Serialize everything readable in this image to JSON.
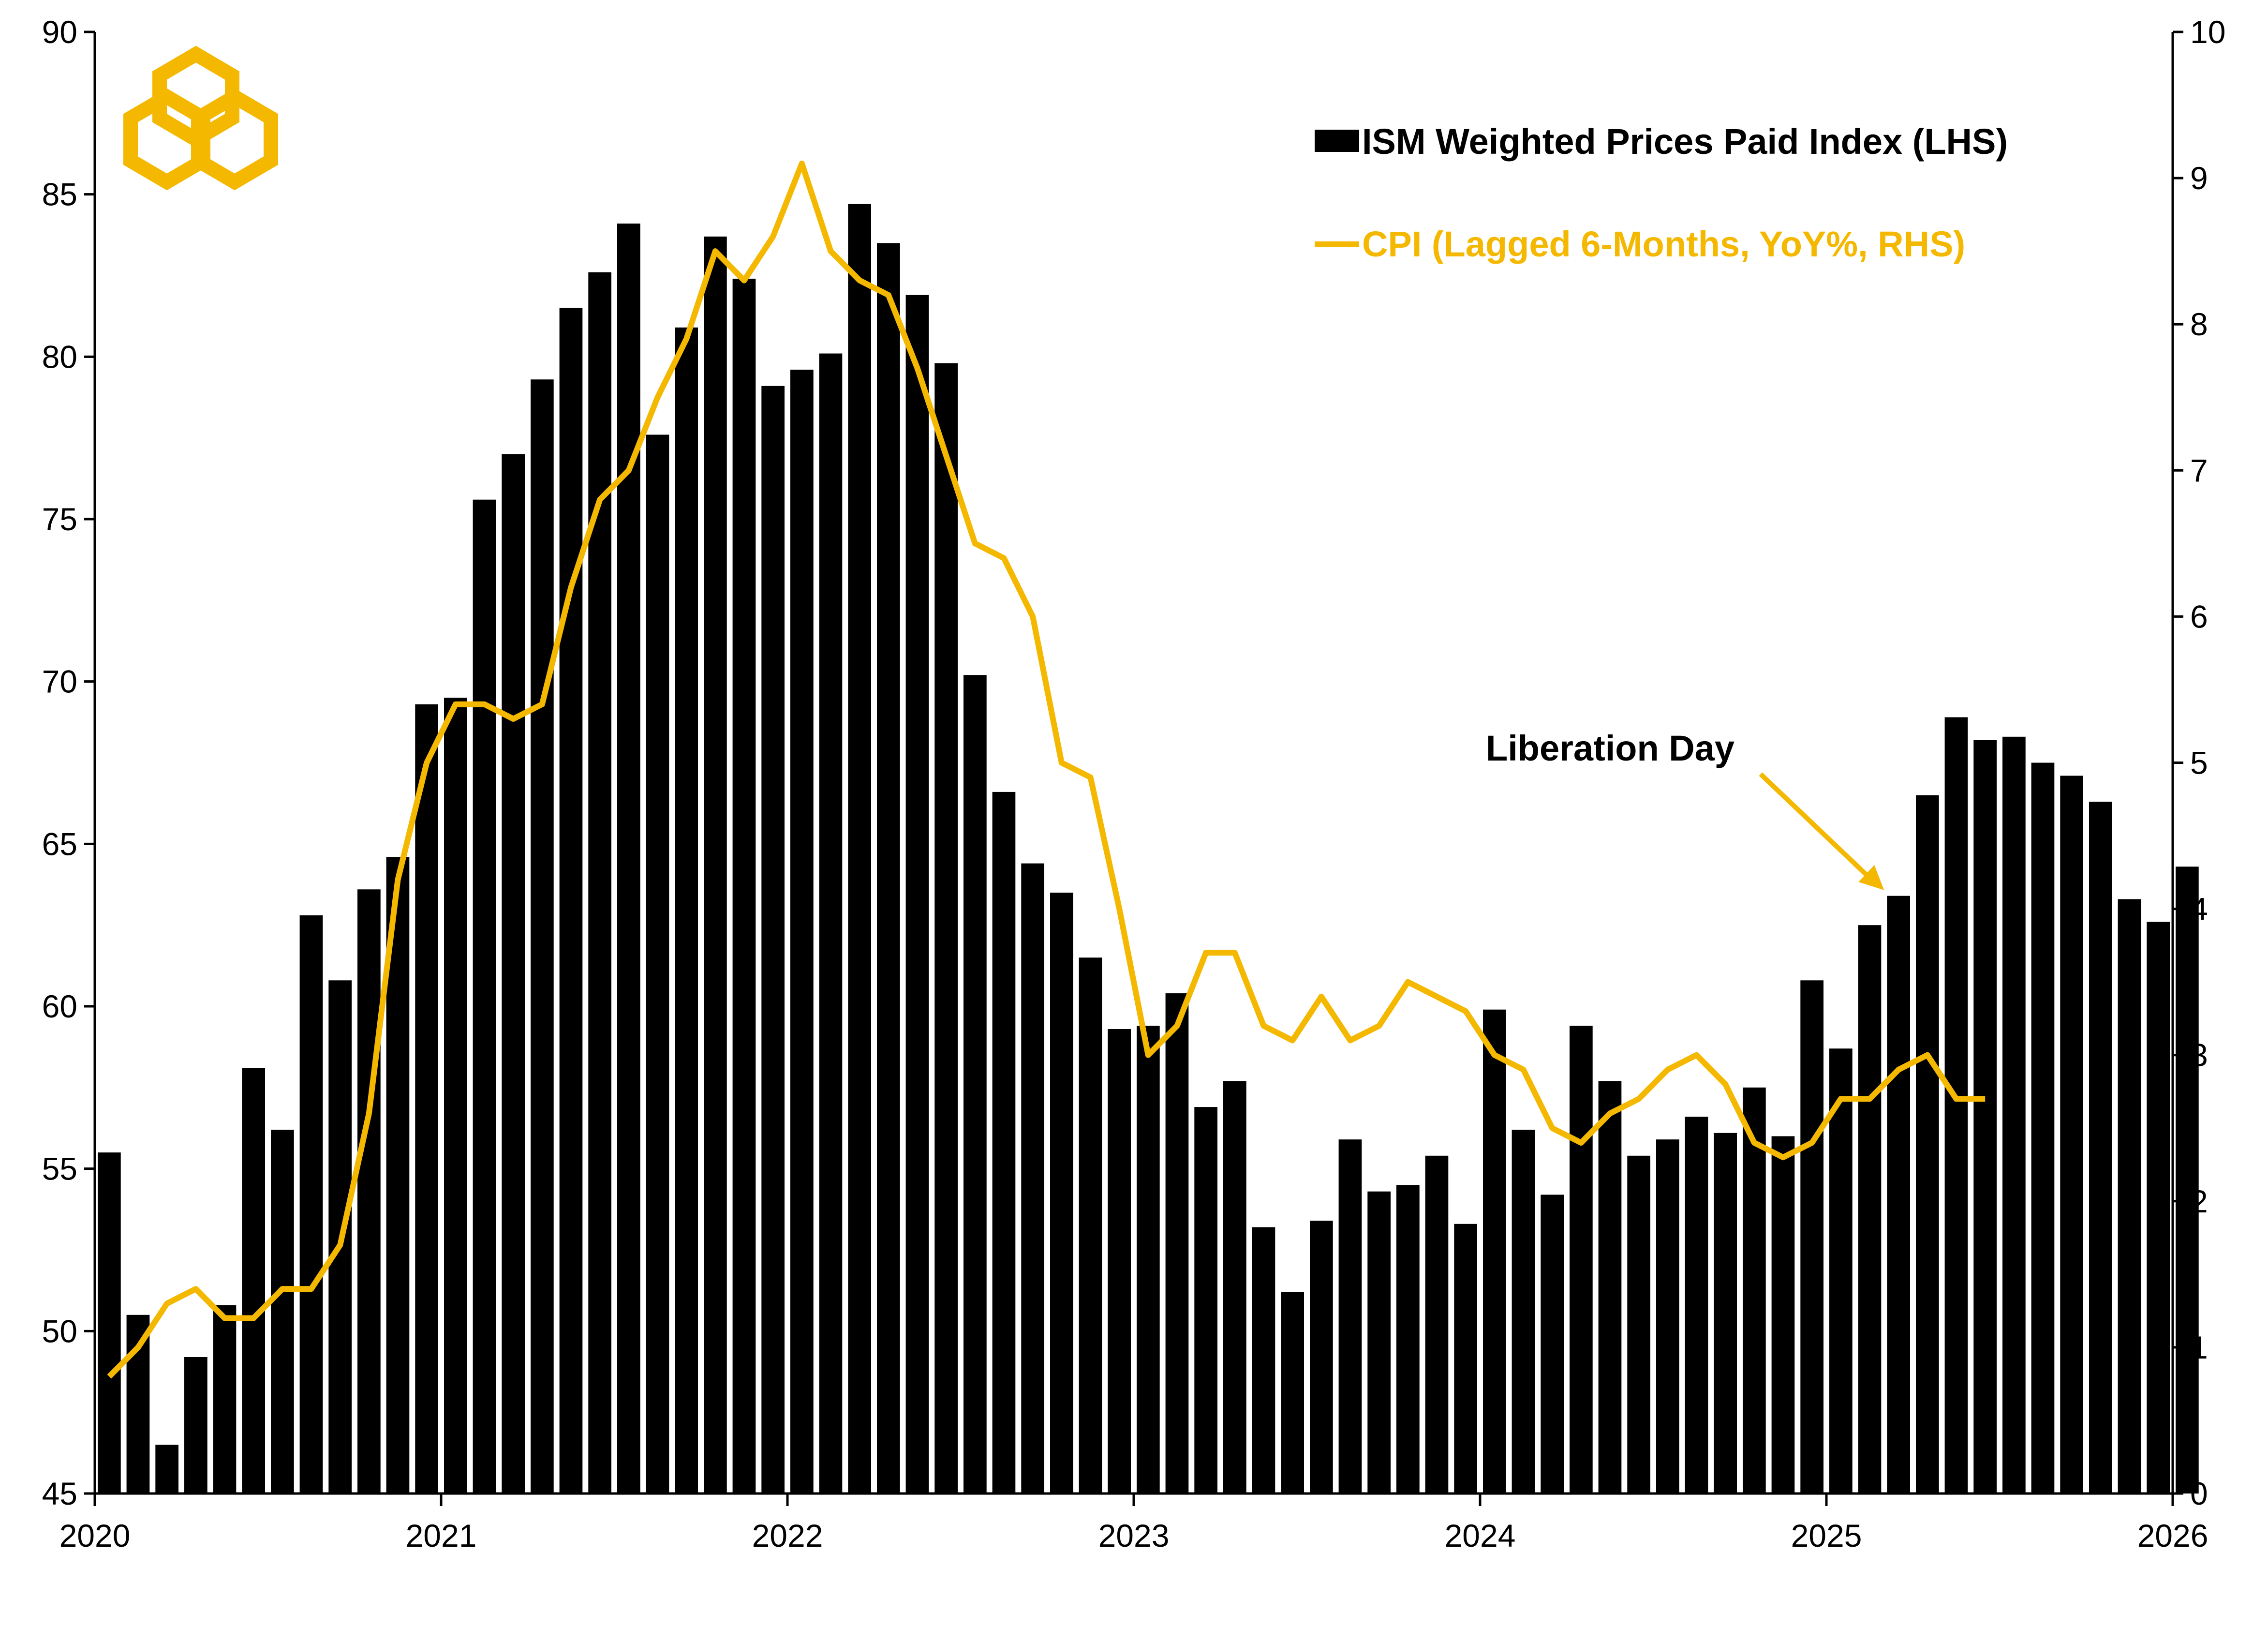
{
  "colors": {
    "bars": "#000000",
    "cpi_line": "#F5B800",
    "logo": "#F5B800",
    "axis": "#000000"
  },
  "logo": {
    "icon": "interlocking-hexagons-logo"
  },
  "chart_data": {
    "type": "bar",
    "title": "",
    "xlabel": "",
    "ylabel_left": "",
    "ylabel_right": "",
    "ylim_left": [
      45,
      90
    ],
    "ylim_right": [
      0,
      10
    ],
    "left_ticks": [
      "45",
      "50",
      "55",
      "60",
      "65",
      "70",
      "75",
      "80",
      "85",
      "90"
    ],
    "right_ticks": [
      "0",
      "1",
      "2",
      "3",
      "4",
      "5",
      "6",
      "7",
      "8",
      "9",
      "10"
    ],
    "x_tick_labels": [
      "2020",
      "2021",
      "2022",
      "2023",
      "2024",
      "2025",
      "2026"
    ],
    "x_start_year": 2020,
    "x_end_year": 2026,
    "grid": false,
    "legend_position": "top-right",
    "annotation": {
      "text": "Liberation Day",
      "target_month_index": 62
    },
    "series": [
      {
        "name": "ISM Weighted Prices Paid Index (LHS)",
        "type": "bar",
        "axis": "left",
        "values": [
          55.5,
          50.5,
          46.5,
          49.2,
          50.8,
          58.1,
          56.2,
          62.8,
          60.8,
          63.6,
          64.6,
          69.3,
          69.5,
          75.6,
          77.0,
          79.3,
          81.5,
          82.6,
          84.1,
          77.6,
          80.9,
          83.7,
          82.4,
          79.1,
          79.6,
          80.1,
          84.7,
          83.5,
          81.9,
          79.8,
          70.2,
          66.6,
          64.4,
          63.5,
          61.5,
          59.3,
          59.4,
          60.4,
          56.9,
          57.7,
          53.2,
          51.2,
          53.4,
          55.9,
          54.3,
          54.5,
          55.4,
          53.3,
          59.9,
          56.2,
          54.2,
          59.4,
          57.7,
          55.4,
          55.9,
          56.6,
          56.1,
          57.5,
          56.0,
          60.8,
          58.7,
          62.5,
          63.4,
          66.5,
          68.9,
          68.2,
          68.3,
          67.5,
          67.1,
          66.3,
          63.3,
          62.6,
          64.3
        ]
      },
      {
        "name": "CPI (Lagged 6-Months, YoY%, RHS)",
        "type": "line",
        "axis": "right",
        "values": [
          0.8,
          1.0,
          1.3,
          1.4,
          1.2,
          1.2,
          1.4,
          1.4,
          1.7,
          2.6,
          4.2,
          5.0,
          5.4,
          5.4,
          5.3,
          5.4,
          6.2,
          6.8,
          7.0,
          7.5,
          7.9,
          8.5,
          8.3,
          8.6,
          9.1,
          8.5,
          8.3,
          8.2,
          7.7,
          7.1,
          6.5,
          6.4,
          6.0,
          5.0,
          4.9,
          4.0,
          3.0,
          3.2,
          3.7,
          3.7,
          3.2,
          3.1,
          3.4,
          3.1,
          3.2,
          3.5,
          3.4,
          3.3,
          3.0,
          2.9,
          2.5,
          2.4,
          2.6,
          2.7,
          2.9,
          3.0,
          2.8,
          2.4,
          2.3,
          2.4,
          2.7,
          2.7,
          2.9,
          3.0,
          2.7,
          2.7
        ]
      }
    ]
  }
}
